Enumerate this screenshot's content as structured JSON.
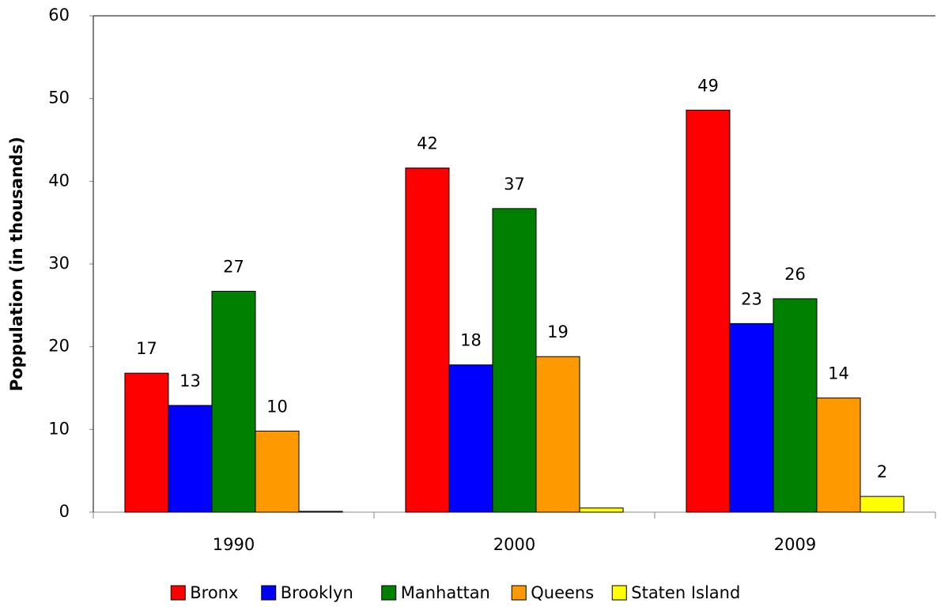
{
  "chart_data": {
    "type": "bar",
    "y_label": "Poppulation (in thousands)",
    "categories": [
      "1990",
      "2000",
      "2009"
    ],
    "series": [
      {
        "name": "Bronx",
        "color": "#ff0000",
        "values": [
          16.8,
          41.6,
          48.6
        ],
        "value_labels": [
          "17",
          "42",
          "49"
        ]
      },
      {
        "name": "Brooklyn",
        "color": "#0000ff",
        "values": [
          12.9,
          17.8,
          22.8
        ],
        "value_labels": [
          "13",
          "18",
          "23"
        ]
      },
      {
        "name": "Manhattan",
        "color": "#008000",
        "values": [
          26.7,
          36.7,
          25.8
        ],
        "value_labels": [
          "27",
          "37",
          "26"
        ]
      },
      {
        "name": "Queens",
        "color": "#ff9900",
        "values": [
          9.8,
          18.8,
          13.8
        ],
        "value_labels": [
          "10",
          "19",
          "14"
        ]
      },
      {
        "name": "Staten Island",
        "color": "#ffff00",
        "values": [
          0.1,
          0.5,
          1.9
        ],
        "value_labels": [
          null,
          null,
          "2"
        ]
      }
    ],
    "ylim": [
      0,
      60
    ],
    "yticks": [
      0,
      10,
      20,
      30,
      40,
      50,
      60
    ],
    "legend": "bottom"
  }
}
